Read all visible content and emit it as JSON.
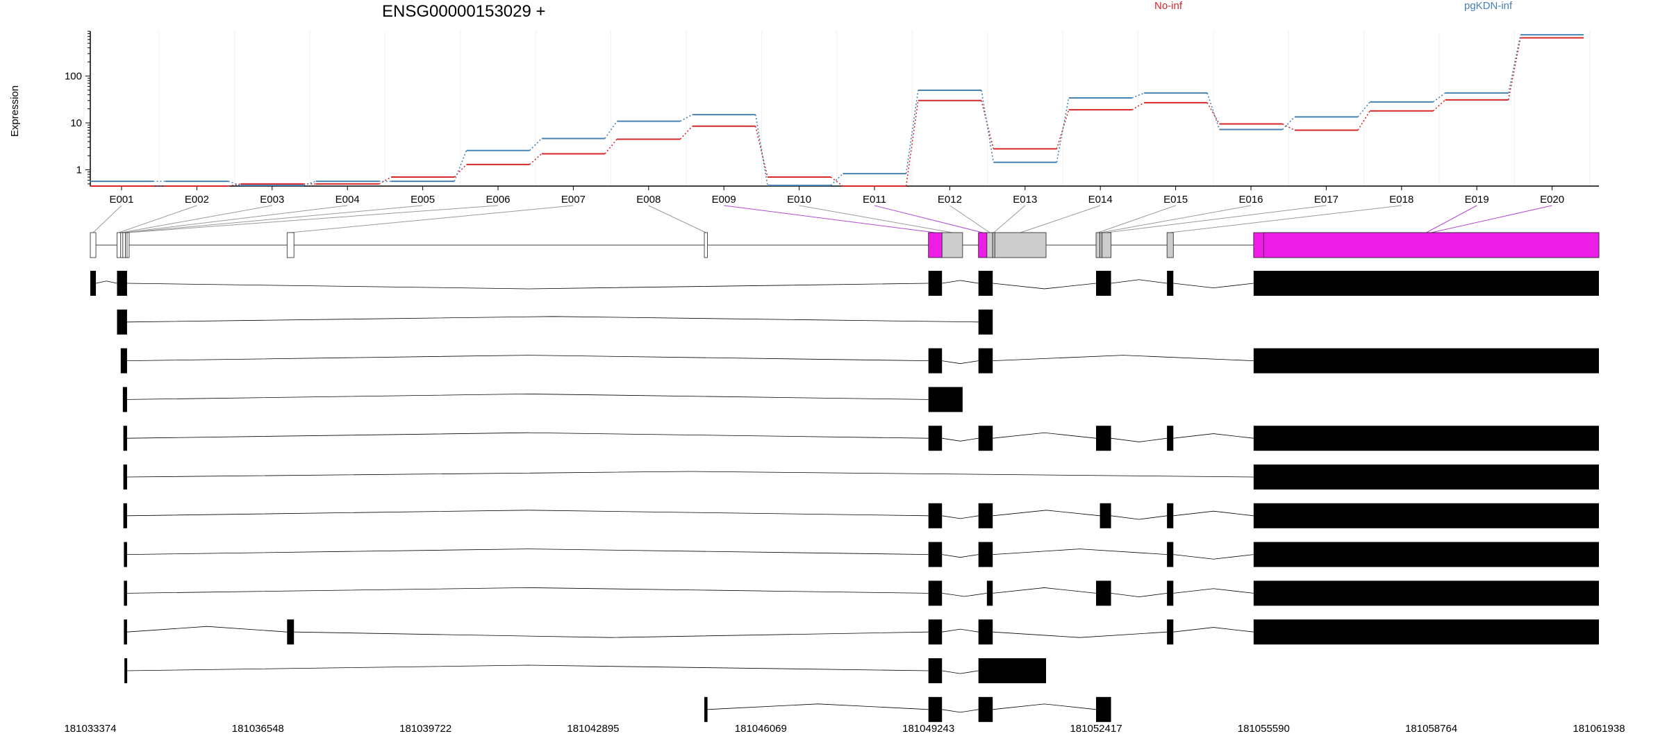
{
  "chart_data": {
    "type": "line",
    "title": "ENSG00000153029 +",
    "ylabel": "Expression",
    "y_scale": "log",
    "y_ticks": [
      "1",
      "10",
      "100"
    ],
    "ylim": [
      0.45,
      900
    ],
    "grid": false,
    "legend_placement": "top",
    "categories": [
      "E001",
      "E002",
      "E003",
      "E004",
      "E005",
      "E006",
      "E007",
      "E008",
      "E009",
      "E010",
      "E011",
      "E012",
      "E013",
      "E014",
      "E015",
      "E016",
      "E017",
      "E018",
      "E019",
      "E020"
    ],
    "series": [
      {
        "name": "No-inf",
        "color": "#d62728",
        "values": [
          0.45,
          0.45,
          0.5,
          0.5,
          0.7,
          1.3,
          2.2,
          4.5,
          8.5,
          0.7,
          0.45,
          30,
          2.8,
          19,
          27,
          9.5,
          7,
          18,
          31,
          650
        ]
      },
      {
        "name": "pgKDN-inf",
        "color": "#4682b4",
        "values": [
          0.55,
          0.55,
          0.45,
          0.55,
          0.55,
          2.5,
          4.5,
          10.5,
          14.5,
          0.45,
          0.8,
          48,
          1.4,
          33,
          42,
          7,
          13,
          27,
          42,
          730
        ]
      }
    ],
    "genome": {
      "x_ticks": [
        "181033374",
        "181036548",
        "181039722",
        "181042895",
        "181046069",
        "181049243",
        "181052417",
        "181055590",
        "181058764",
        "181061938"
      ],
      "exon_bins": [
        {
          "id": "E001",
          "start": 181033374,
          "end": 181033480,
          "differential": false
        },
        {
          "id": "E002",
          "start": 181033880,
          "end": 181033950,
          "differential": false
        },
        {
          "id": "E003",
          "start": 181033950,
          "end": 181033990,
          "differential": false
        },
        {
          "id": "E004",
          "start": 181033990,
          "end": 181034040,
          "differential": false
        },
        {
          "id": "E005",
          "start": 181034040,
          "end": 181034070,
          "differential": false
        },
        {
          "id": "E006",
          "start": 181034070,
          "end": 181034110,
          "differential": false
        },
        {
          "id": "E007",
          "start": 181037100,
          "end": 181037230,
          "differential": false
        },
        {
          "id": "E008",
          "start": 181045000,
          "end": 181045060,
          "differential": false
        },
        {
          "id": "E009",
          "start": 181049243,
          "end": 181049500,
          "differential": true
        },
        {
          "id": "E010",
          "start": 181049500,
          "end": 181049890,
          "differential": false
        },
        {
          "id": "E011",
          "start": 181050190,
          "end": 181050350,
          "differential": true
        },
        {
          "id": "E012",
          "start": 181050350,
          "end": 181050460,
          "differential": false
        },
        {
          "id": "E013",
          "start": 181050460,
          "end": 181050500,
          "differential": false
        },
        {
          "id": "E014",
          "start": 181050500,
          "end": 181051470,
          "differential": false
        },
        {
          "id": "E015",
          "start": 181052417,
          "end": 181052490,
          "differential": false
        },
        {
          "id": "E016",
          "start": 181052490,
          "end": 181052530,
          "differential": false
        },
        {
          "id": "E017",
          "start": 181052530,
          "end": 181052700,
          "differential": false
        },
        {
          "id": "E018",
          "start": 181053760,
          "end": 181053880,
          "differential": false
        },
        {
          "id": "E019",
          "start": 181055400,
          "end": 181061938,
          "differential": true
        },
        {
          "id": "E020",
          "start": 181055590,
          "end": 181061938,
          "differential": true
        }
      ],
      "transcripts": [
        [
          [
            181033374,
            181033480
          ],
          [
            181033880,
            181034070
          ],
          [
            181049243,
            181049500
          ],
          [
            181050190,
            181050460
          ],
          [
            181052417,
            181052700
          ],
          [
            181053760,
            181053880
          ],
          [
            181055400,
            181061938
          ]
        ],
        [
          [
            181033880,
            181034070
          ],
          [
            181050190,
            181050460
          ]
        ],
        [
          [
            181033950,
            181034070
          ],
          [
            181049243,
            181049500
          ],
          [
            181050190,
            181050460
          ],
          [
            181055400,
            181061938
          ]
        ],
        [
          [
            181033990,
            181034070
          ],
          [
            181049243,
            181049890
          ]
        ],
        [
          [
            181034000,
            181034070
          ],
          [
            181049243,
            181049500
          ],
          [
            181050190,
            181050460
          ],
          [
            181052417,
            181052700
          ],
          [
            181053760,
            181053880
          ],
          [
            181055400,
            181061938
          ]
        ],
        [
          [
            181034000,
            181034070
          ],
          [
            181055400,
            181061938
          ]
        ],
        [
          [
            181034000,
            181034070
          ],
          [
            181049243,
            181049500
          ],
          [
            181050190,
            181050460
          ],
          [
            181052490,
            181052700
          ],
          [
            181053760,
            181053880
          ],
          [
            181055400,
            181061938
          ]
        ],
        [
          [
            181034010,
            181034070
          ],
          [
            181049243,
            181049500
          ],
          [
            181050190,
            181050460
          ],
          [
            181053760,
            181053880
          ],
          [
            181055400,
            181061938
          ]
        ],
        [
          [
            181034010,
            181034070
          ],
          [
            181049243,
            181049500
          ],
          [
            181050350,
            181050460
          ],
          [
            181052417,
            181052700
          ],
          [
            181053760,
            181053880
          ],
          [
            181055400,
            181061938
          ]
        ],
        [
          [
            181034010,
            181034070
          ],
          [
            181037100,
            181037230
          ],
          [
            181049243,
            181049500
          ],
          [
            181050190,
            181050460
          ],
          [
            181053760,
            181053880
          ],
          [
            181055400,
            181061938
          ]
        ],
        [
          [
            181034020,
            181034070
          ],
          [
            181049243,
            181049500
          ],
          [
            181050190,
            181051470
          ]
        ],
        [
          [
            181045000,
            181045060
          ],
          [
            181049243,
            181049500
          ],
          [
            181050190,
            181050460
          ],
          [
            181052417,
            181052700
          ]
        ]
      ]
    }
  }
}
